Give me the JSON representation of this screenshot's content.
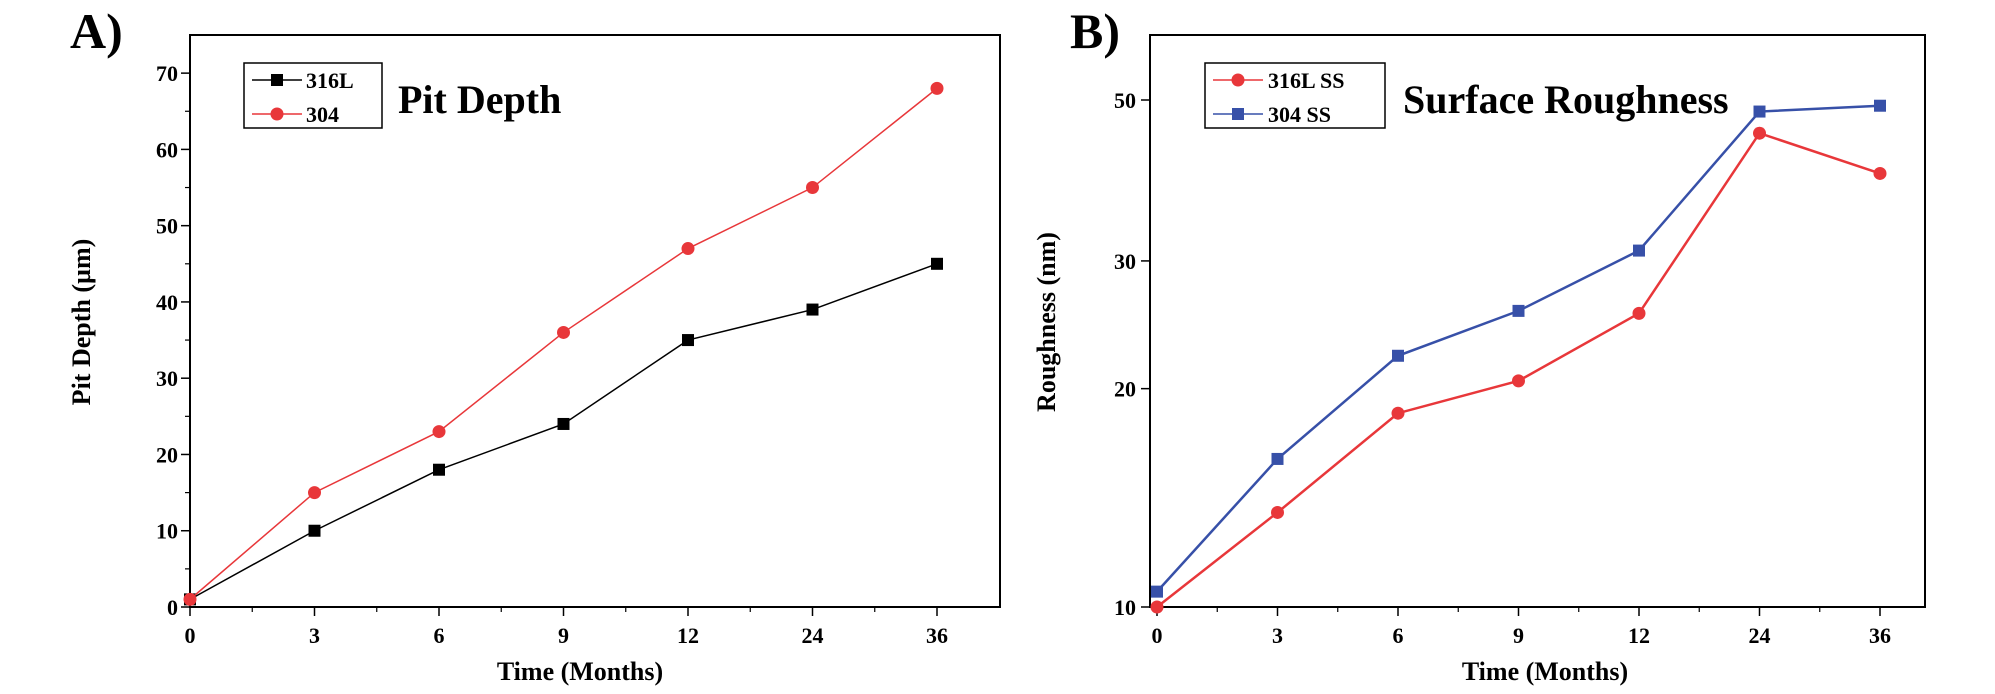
{
  "chart_data": [
    {
      "panel": "A)",
      "type": "line",
      "title": "Pit Depth",
      "xlabel": "Time (Months)",
      "ylabel": "Pit Depth (µm)",
      "categories": [
        "0",
        "3",
        "6",
        "9",
        "12",
        "24",
        "36"
      ],
      "ylim": [
        0,
        75
      ],
      "yticks": [
        0,
        10,
        20,
        30,
        40,
        50,
        60,
        70
      ],
      "legend_position": "top-left",
      "series": [
        {
          "name": "316L",
          "color": "#000000",
          "marker": "square",
          "values": [
            1,
            10,
            18,
            24,
            35,
            39,
            45
          ]
        },
        {
          "name": "304",
          "color": "#e8373a",
          "marker": "circle",
          "values": [
            1,
            15,
            23,
            36,
            47,
            55,
            68
          ]
        }
      ]
    },
    {
      "panel": "B)",
      "type": "line",
      "title": "Surface Roughness",
      "xlabel": "Time (Months)",
      "ylabel": "Roughness (nm)",
      "categories": [
        "0",
        "3",
        "6",
        "9",
        "12",
        "24",
        "36"
      ],
      "ylim": [
        10,
        50
      ],
      "yscale": "log",
      "yticks": [
        10,
        20,
        30,
        50
      ],
      "legend_position": "top-left",
      "series": [
        {
          "name": "316L SS",
          "color": "#e8373a",
          "marker": "circle",
          "values": [
            10,
            13.5,
            18.5,
            20.5,
            25.4,
            45,
            39.6
          ]
        },
        {
          "name": "304 SS",
          "color": "#3750a8",
          "marker": "square",
          "values": [
            10.5,
            16,
            22.2,
            25.6,
            31,
            48.2,
            49.1
          ]
        }
      ]
    }
  ]
}
